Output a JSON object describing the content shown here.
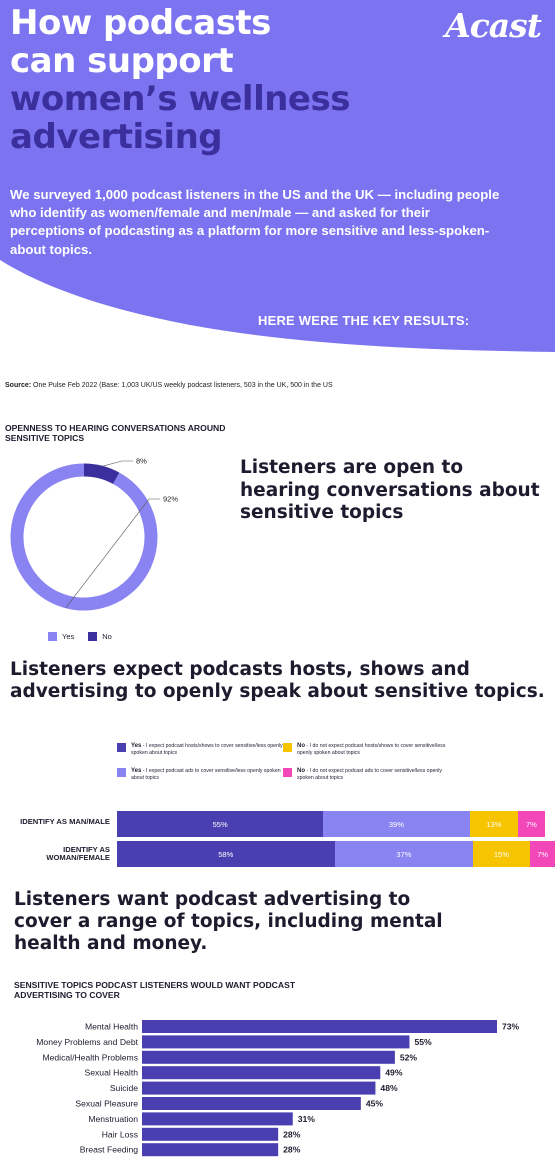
{
  "hero": {
    "title_lines": [
      "How podcasts",
      "can support",
      "women’s wellness",
      "advertising"
    ],
    "logo": "Acast",
    "intro": "We surveyed 1,000 podcast listeners in the US and the UK — including people who identify as women/female and men/male — and asked for their perceptions of podcasting as a platform for more sensitive and less-spoken-about topics.",
    "key_results": "HERE WERE THE KEY RESULTS:"
  },
  "source": {
    "label": "Source:",
    "text": "One Pulse Feb 2022 (Base: 1,003 UK/US weekly podcast listeners, 503 in the UK, 500 in the US"
  },
  "colors": {
    "hero_purple": "#7b73f0",
    "dark_purple": "#3b2f9e",
    "bar_purple": "#4a3fb0",
    "light_purple": "#8a84f2",
    "yellow": "#f7c400",
    "pink": "#f247b8",
    "text": "#1e1b2e"
  },
  "chart_data": [
    {
      "type": "pie",
      "title": "OPENNESS TO HEARING CONVERSATIONS AROUND SENSITIVE TOPICS",
      "slices": [
        {
          "name": "Yes",
          "value": 92,
          "label": "92%"
        },
        {
          "name": "No",
          "value": 8,
          "label": "8%"
        }
      ],
      "legend": [
        "Yes",
        "No"
      ],
      "legend_position": "bottom",
      "headline": "Listeners are open to hearing conversations about sensitive topics"
    },
    {
      "type": "bar",
      "stacked": true,
      "orientation": "horizontal",
      "headline": "Listeners expect podcasts hosts, shows and advertising to openly speak about sensitive topics.",
      "categories": [
        "IDENTIFY AS MAN/MALE",
        "IDENTIFY AS WOMAN/FEMALE"
      ],
      "legend_entries": [
        {
          "bold": "Yes",
          "text": " - I expect podcast hosts/shows to cover sensitive/less openly spoken about topics"
        },
        {
          "bold": "Yes",
          "text": " - I expect podcast ads to cover sensitive/less openly spoken about topics"
        },
        {
          "bold": "No",
          "text": " - I do not expect podcast hosts/shows to cover sensitive/less openly spoken about topics"
        },
        {
          "bold": "No",
          "text": " - I do not expect podcast ads to cover sensitive/less openly spoken about topics"
        }
      ],
      "series": [
        {
          "values": [
            55,
            58
          ],
          "labels": [
            "55%",
            "58%"
          ]
        },
        {
          "values": [
            39,
            37
          ],
          "labels": [
            "39%",
            "37%"
          ]
        },
        {
          "values": [
            13,
            15
          ],
          "labels": [
            "13%",
            "15%"
          ]
        },
        {
          "values": [
            7,
            7
          ],
          "labels": [
            "7%",
            "7%"
          ]
        }
      ]
    },
    {
      "type": "bar",
      "orientation": "horizontal",
      "headline": "Listeners want podcast advertising to cover a range of topics, including mental health and money.",
      "title": "SENSITIVE TOPICS PODCAST LISTENERS WOULD WANT PODCAST ADVERTISING TO COVER",
      "categories": [
        "Mental Health",
        "Money Problems and Debt",
        "Medical/Health Problems",
        "Sexual Health",
        "Suicide",
        "Sexual Pleasure",
        "Menstruation",
        "Hair Loss",
        "Breast Feeding"
      ],
      "values": [
        73,
        55,
        52,
        49,
        48,
        45,
        31,
        28,
        28
      ],
      "value_labels": [
        "73%",
        "55%",
        "52%",
        "49%",
        "48%",
        "45%",
        "31%",
        "28%",
        "28%"
      ]
    }
  ]
}
